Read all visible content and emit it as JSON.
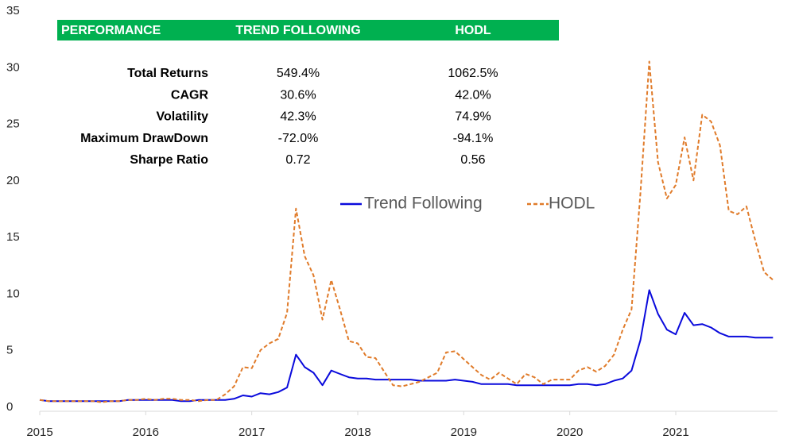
{
  "chart_data": {
    "type": "line",
    "xlim": [
      2015,
      2021.96
    ],
    "xticks": [
      2015,
      2016,
      2017,
      2018,
      2019,
      2020,
      2021
    ],
    "ylim": [
      0,
      35
    ],
    "yticks": [
      0,
      5,
      10,
      15,
      20,
      25,
      30,
      35
    ],
    "legend": "upper center",
    "x": [
      2015,
      2015.083,
      2015.167,
      2015.25,
      2015.333,
      2015.417,
      2015.5,
      2015.583,
      2015.667,
      2015.75,
      2015.833,
      2015.917,
      2016,
      2016.083,
      2016.167,
      2016.25,
      2016.333,
      2016.417,
      2016.5,
      2016.583,
      2016.667,
      2016.75,
      2016.833,
      2016.917,
      2017,
      2017.083,
      2017.167,
      2017.25,
      2017.333,
      2017.417,
      2017.5,
      2017.583,
      2017.667,
      2017.75,
      2017.833,
      2017.917,
      2018,
      2018.083,
      2018.167,
      2018.25,
      2018.333,
      2018.417,
      2018.5,
      2018.583,
      2018.667,
      2018.75,
      2018.833,
      2018.917,
      2019,
      2019.083,
      2019.167,
      2019.25,
      2019.333,
      2019.417,
      2019.5,
      2019.583,
      2019.667,
      2019.75,
      2019.833,
      2019.917,
      2020,
      2020.083,
      2020.167,
      2020.25,
      2020.333,
      2020.417,
      2020.5,
      2020.583,
      2020.667,
      2020.75,
      2020.833,
      2020.917,
      2021,
      2021.083,
      2021.167,
      2021.25,
      2021.333,
      2021.417,
      2021.5,
      2021.583,
      2021.667,
      2021.75,
      2021.833,
      2021.917
    ],
    "series": [
      {
        "name": "Trend Following",
        "color": "#0a0adc",
        "dash": false,
        "values": [
          1.0,
          0.9,
          0.9,
          0.9,
          0.9,
          0.9,
          0.9,
          0.9,
          0.9,
          0.9,
          1.0,
          1.0,
          1.0,
          1.0,
          1.0,
          1.0,
          0.9,
          0.9,
          1.0,
          1.0,
          1.0,
          1.0,
          1.1,
          1.4,
          1.3,
          1.6,
          1.5,
          1.7,
          2.1,
          5.0,
          3.9,
          3.4,
          2.3,
          3.6,
          3.3,
          3.0,
          2.9,
          2.9,
          2.8,
          2.8,
          2.8,
          2.8,
          2.8,
          2.7,
          2.7,
          2.7,
          2.7,
          2.8,
          2.7,
          2.6,
          2.4,
          2.4,
          2.4,
          2.4,
          2.3,
          2.3,
          2.3,
          2.3,
          2.3,
          2.3,
          2.3,
          2.4,
          2.4,
          2.3,
          2.4,
          2.7,
          2.9,
          3.6,
          6.3,
          10.7,
          8.6,
          7.2,
          6.8,
          8.7,
          7.6,
          7.7,
          7.4,
          6.9,
          6.6,
          6.6,
          6.6,
          6.5,
          6.5,
          6.5
        ]
      },
      {
        "name": "HODL",
        "color": "#e07b2a",
        "dash": true,
        "values": [
          1.0,
          0.9,
          0.9,
          0.9,
          0.9,
          0.9,
          0.9,
          0.8,
          0.9,
          0.9,
          1.0,
          1.0,
          1.1,
          1.0,
          1.1,
          1.1,
          1.0,
          1.0,
          0.9,
          1.0,
          1.0,
          1.5,
          2.2,
          3.9,
          3.8,
          5.4,
          6.0,
          6.4,
          8.7,
          17.9,
          13.7,
          12.0,
          8.1,
          11.6,
          9.0,
          6.2,
          6.0,
          4.8,
          4.7,
          3.5,
          2.3,
          2.2,
          2.4,
          2.6,
          3.0,
          3.4,
          5.2,
          5.3,
          4.6,
          3.9,
          3.2,
          2.8,
          3.4,
          2.9,
          2.4,
          3.3,
          3.0,
          2.4,
          2.8,
          2.8,
          2.8,
          3.6,
          3.9,
          3.5,
          4.0,
          5.0,
          7.2,
          9.0,
          19.3,
          30.9,
          22.0,
          18.8,
          20.0,
          24.2,
          20.4,
          26.2,
          25.6,
          23.5,
          17.7,
          17.4,
          18.1,
          15.1,
          12.3,
          11.6
        ]
      }
    ],
    "table": {
      "header_color": "#00b050",
      "headers": [
        "PERFORMANCE",
        "TREND FOLLOWING",
        "HODL"
      ],
      "rows": [
        [
          "Total Returns",
          "549.4%",
          "1062.5%"
        ],
        [
          "CAGR",
          "30.6%",
          "42.0%"
        ],
        [
          "Volatility",
          "42.3%",
          "74.9%"
        ],
        [
          "Maximum DrawDown",
          "-72.0%",
          "-94.1%"
        ],
        [
          "Sharpe Ratio",
          "0.72",
          "0.56"
        ]
      ]
    }
  }
}
